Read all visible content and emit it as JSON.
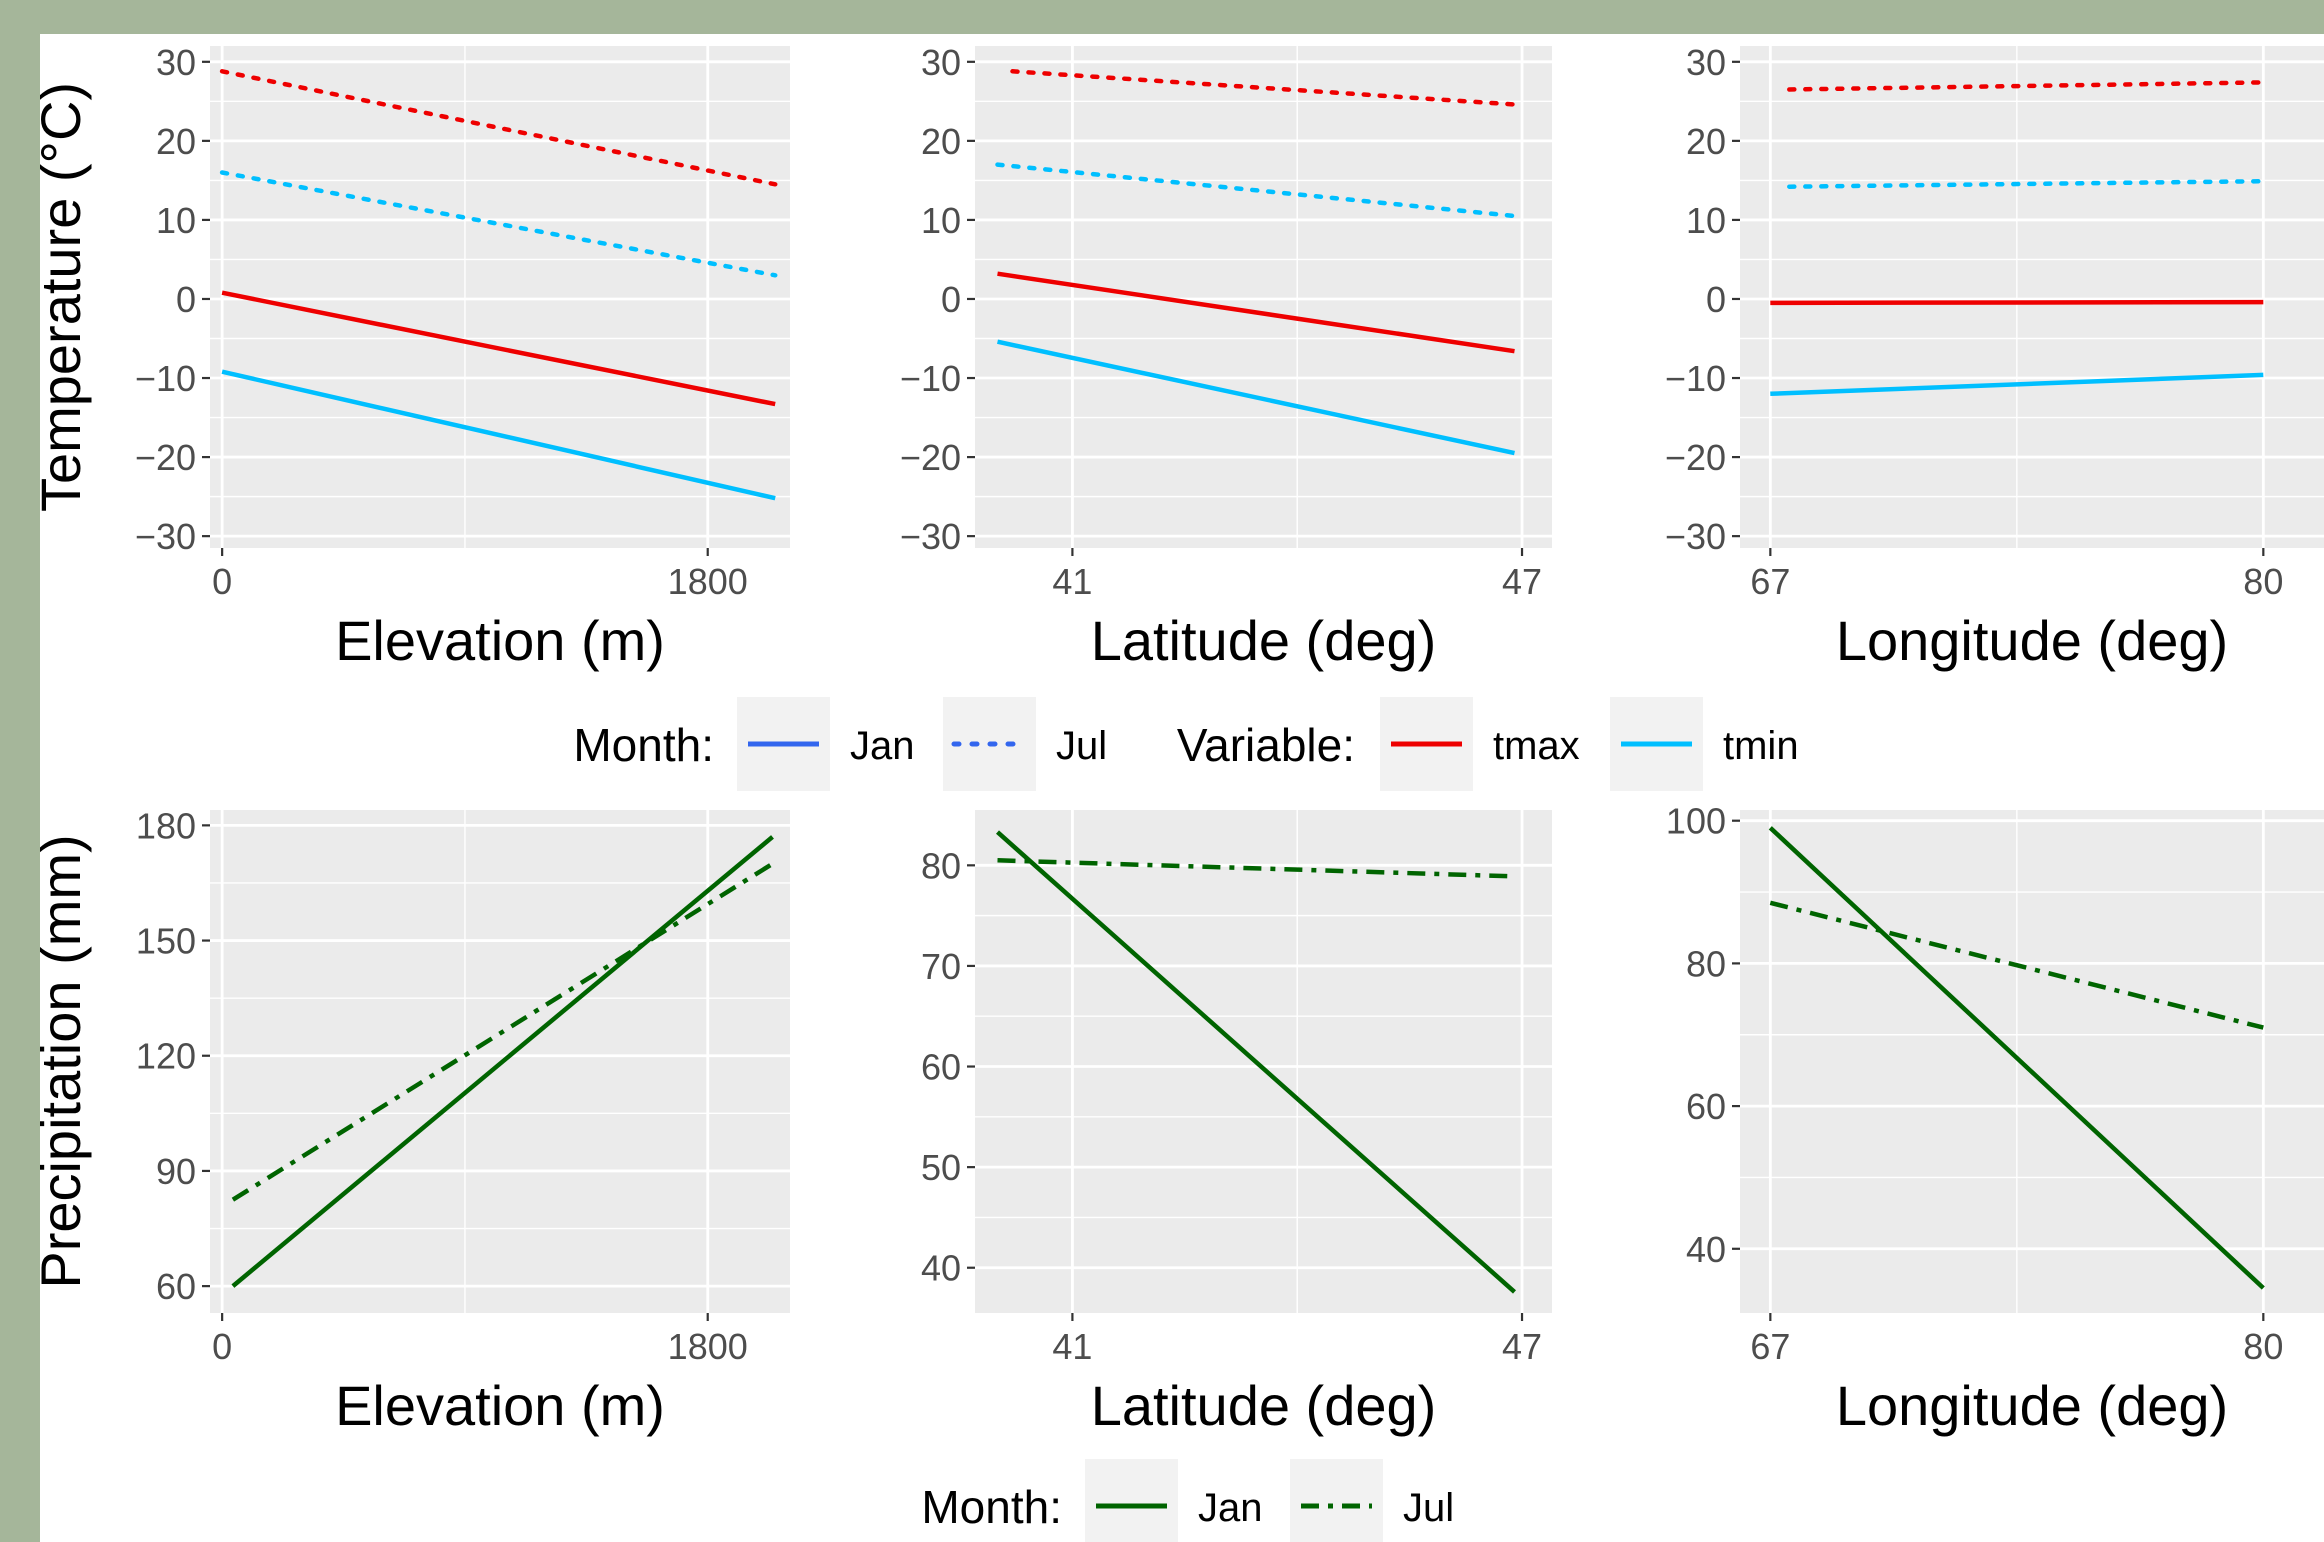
{
  "colors": {
    "page_background": "#a5b69a",
    "panel_background": "#ebebeb",
    "gridline": "#ffffff",
    "tick_text": "#4d4d4d",
    "tmax": "#ee0000",
    "tmin": "#00bfff",
    "precip": "#006400",
    "legend_month_key": "#3366ee"
  },
  "legends": [
    {
      "title": "Month:",
      "items": [
        {
          "label": "Jan",
          "linetype": "solid",
          "color": "#3366ee"
        },
        {
          "label": "Jul",
          "linetype": "dotted",
          "color": "#3366ee"
        }
      ]
    },
    {
      "title": "Variable:",
      "items": [
        {
          "label": "tmax",
          "linetype": "solid",
          "color": "#ee0000"
        },
        {
          "label": "tmin",
          "linetype": "solid",
          "color": "#00bfff"
        }
      ]
    },
    {
      "title": "Month:",
      "items": [
        {
          "label": "Jan",
          "linetype": "solid",
          "color": "#006400"
        },
        {
          "label": "Jul",
          "linetype": "dashdot",
          "color": "#006400"
        }
      ]
    }
  ],
  "chart_data": [
    {
      "type": "line",
      "row": "temperature",
      "ylabel": "Temperature (°C)",
      "xlabel": "Elevation (m)",
      "xlim": [
        -45,
        2105
      ],
      "ylim": [
        -31.5,
        32
      ],
      "x_ticks": [
        0,
        1800
      ],
      "x_minor_ticks": [
        900
      ],
      "y_ticks": [
        -30,
        -20,
        -10,
        0,
        10,
        20,
        30
      ],
      "series": [
        {
          "variable": "tmax",
          "month": "Jul",
          "linetype": "dotted",
          "color": "#ee0000",
          "x": [
            0,
            2050
          ],
          "y": [
            28.8,
            14.5
          ]
        },
        {
          "variable": "tmin",
          "month": "Jul",
          "linetype": "dotted",
          "color": "#00bfff",
          "x": [
            0,
            2050
          ],
          "y": [
            16.0,
            3.0
          ]
        },
        {
          "variable": "tmax",
          "month": "Jan",
          "linetype": "solid",
          "color": "#ee0000",
          "x": [
            0,
            2050
          ],
          "y": [
            0.8,
            -13.3
          ]
        },
        {
          "variable": "tmin",
          "month": "Jan",
          "linetype": "solid",
          "color": "#00bfff",
          "x": [
            0,
            2050
          ],
          "y": [
            -9.2,
            -25.2
          ]
        }
      ]
    },
    {
      "type": "line",
      "row": "temperature",
      "xlabel": "Latitude (deg)",
      "xlim": [
        39.7,
        47.4
      ],
      "ylim": [
        -31.5,
        32
      ],
      "x_ticks": [
        41,
        47
      ],
      "x_minor_ticks": [
        44
      ],
      "y_ticks": [
        -30,
        -20,
        -10,
        0,
        10,
        20,
        30
      ],
      "series": [
        {
          "variable": "tmax",
          "month": "Jul",
          "linetype": "dotted",
          "color": "#ee0000",
          "x": [
            40.2,
            46.9
          ],
          "y": [
            28.8,
            24.6
          ]
        },
        {
          "variable": "tmin",
          "month": "Jul",
          "linetype": "dotted",
          "color": "#00bfff",
          "x": [
            40.0,
            46.9
          ],
          "y": [
            17.0,
            10.5
          ]
        },
        {
          "variable": "tmax",
          "month": "Jan",
          "linetype": "solid",
          "color": "#ee0000",
          "x": [
            40.0,
            46.9
          ],
          "y": [
            3.2,
            -6.6
          ]
        },
        {
          "variable": "tmin",
          "month": "Jan",
          "linetype": "solid",
          "color": "#00bfff",
          "x": [
            40.0,
            46.9
          ],
          "y": [
            -5.4,
            -19.5
          ]
        }
      ]
    },
    {
      "type": "line",
      "row": "temperature",
      "xlabel": "Longitude (deg)",
      "xlim": [
        66.2,
        81.6
      ],
      "ylim": [
        -31.5,
        32
      ],
      "x_ticks": [
        67,
        80
      ],
      "x_minor_ticks": [
        73.5
      ],
      "y_ticks": [
        -30,
        -20,
        -10,
        0,
        10,
        20,
        30
      ],
      "series": [
        {
          "variable": "tmax",
          "month": "Jul",
          "linetype": "dotted",
          "color": "#ee0000",
          "x": [
            67.5,
            80.0
          ],
          "y": [
            26.5,
            27.4
          ]
        },
        {
          "variable": "tmin",
          "month": "Jul",
          "linetype": "dotted",
          "color": "#00bfff",
          "x": [
            67.5,
            80.0
          ],
          "y": [
            14.2,
            14.9
          ]
        },
        {
          "variable": "tmax",
          "month": "Jan",
          "linetype": "solid",
          "color": "#ee0000",
          "x": [
            67.0,
            80.0
          ],
          "y": [
            -0.5,
            -0.4
          ]
        },
        {
          "variable": "tmin",
          "month": "Jan",
          "linetype": "solid",
          "color": "#00bfff",
          "x": [
            67.0,
            80.0
          ],
          "y": [
            -12.0,
            -9.6
          ]
        }
      ]
    },
    {
      "type": "line",
      "row": "precipitation",
      "ylabel": "Precipitation (mm)",
      "xlabel": "Elevation (m)",
      "xlim": [
        -45,
        2105
      ],
      "ylim": [
        53,
        184
      ],
      "x_ticks": [
        0,
        1800
      ],
      "x_minor_ticks": [
        900
      ],
      "y_ticks": [
        60,
        90,
        120,
        150,
        180
      ],
      "series": [
        {
          "month": "Jan",
          "linetype": "solid",
          "color": "#006400",
          "x": [
            40,
            2040
          ],
          "y": [
            60,
            177
          ]
        },
        {
          "month": "Jul",
          "linetype": "dashdot",
          "color": "#006400",
          "x": [
            40,
            2040
          ],
          "y": [
            82.5,
            170
          ]
        }
      ]
    },
    {
      "type": "line",
      "row": "precipitation",
      "xlabel": "Latitude (deg)",
      "xlim": [
        39.7,
        47.4
      ],
      "ylim": [
        35.5,
        85.5
      ],
      "x_ticks": [
        41,
        47
      ],
      "x_minor_ticks": [
        44
      ],
      "y_ticks": [
        40,
        50,
        60,
        70,
        80
      ],
      "series": [
        {
          "month": "Jan",
          "linetype": "solid",
          "color": "#006400",
          "x": [
            40.0,
            46.9
          ],
          "y": [
            83.3,
            37.6
          ]
        },
        {
          "month": "Jul",
          "linetype": "dashdot",
          "color": "#006400",
          "x": [
            40.0,
            46.9
          ],
          "y": [
            80.5,
            78.9
          ]
        }
      ]
    },
    {
      "type": "line",
      "row": "precipitation",
      "xlabel": "Longitude (deg)",
      "xlim": [
        66.2,
        81.6
      ],
      "ylim": [
        31,
        101.5
      ],
      "x_ticks": [
        67,
        80
      ],
      "x_minor_ticks": [
        73.5
      ],
      "y_ticks": [
        40,
        60,
        80,
        100
      ],
      "series": [
        {
          "month": "Jan",
          "linetype": "solid",
          "color": "#006400",
          "x": [
            67.0,
            80.0
          ],
          "y": [
            99,
            34.5
          ]
        },
        {
          "month": "Jul",
          "linetype": "dashdot",
          "color": "#006400",
          "x": [
            67.0,
            80.0
          ],
          "y": [
            88.5,
            71
          ]
        }
      ]
    }
  ]
}
